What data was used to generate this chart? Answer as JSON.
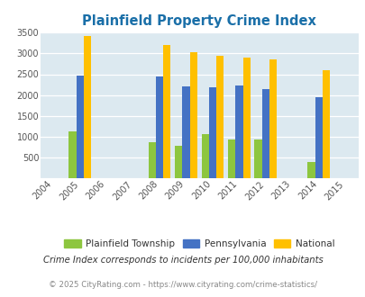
{
  "title": "Plainfield Property Crime Index",
  "years": [
    2004,
    2005,
    2006,
    2007,
    2008,
    2009,
    2010,
    2011,
    2012,
    2013,
    2014,
    2015
  ],
  "data_years": [
    2005,
    2008,
    2009,
    2010,
    2011,
    2012,
    2014
  ],
  "plainfield": [
    1120,
    870,
    780,
    1060,
    930,
    930,
    400
  ],
  "pennsylvania": [
    2460,
    2440,
    2200,
    2180,
    2230,
    2150,
    1940
  ],
  "national": [
    3420,
    3200,
    3040,
    2950,
    2900,
    2860,
    2590
  ],
  "plainfield_color": "#8dc63f",
  "pennsylvania_color": "#4472c4",
  "national_color": "#ffc000",
  "bg_color": "#dce9f0",
  "ylim": [
    0,
    3500
  ],
  "yticks": [
    0,
    500,
    1000,
    1500,
    2000,
    2500,
    3000,
    3500
  ],
  "tick_label_color": "#555555",
  "title_color": "#1a6fa8",
  "footnote": "Crime Index corresponds to incidents per 100,000 inhabitants",
  "copyright": "© 2025 CityRating.com - https://www.cityrating.com/crime-statistics/",
  "bar_width": 0.28,
  "tick_label_size": 7.0,
  "xlim": [
    2003.5,
    2015.5
  ]
}
